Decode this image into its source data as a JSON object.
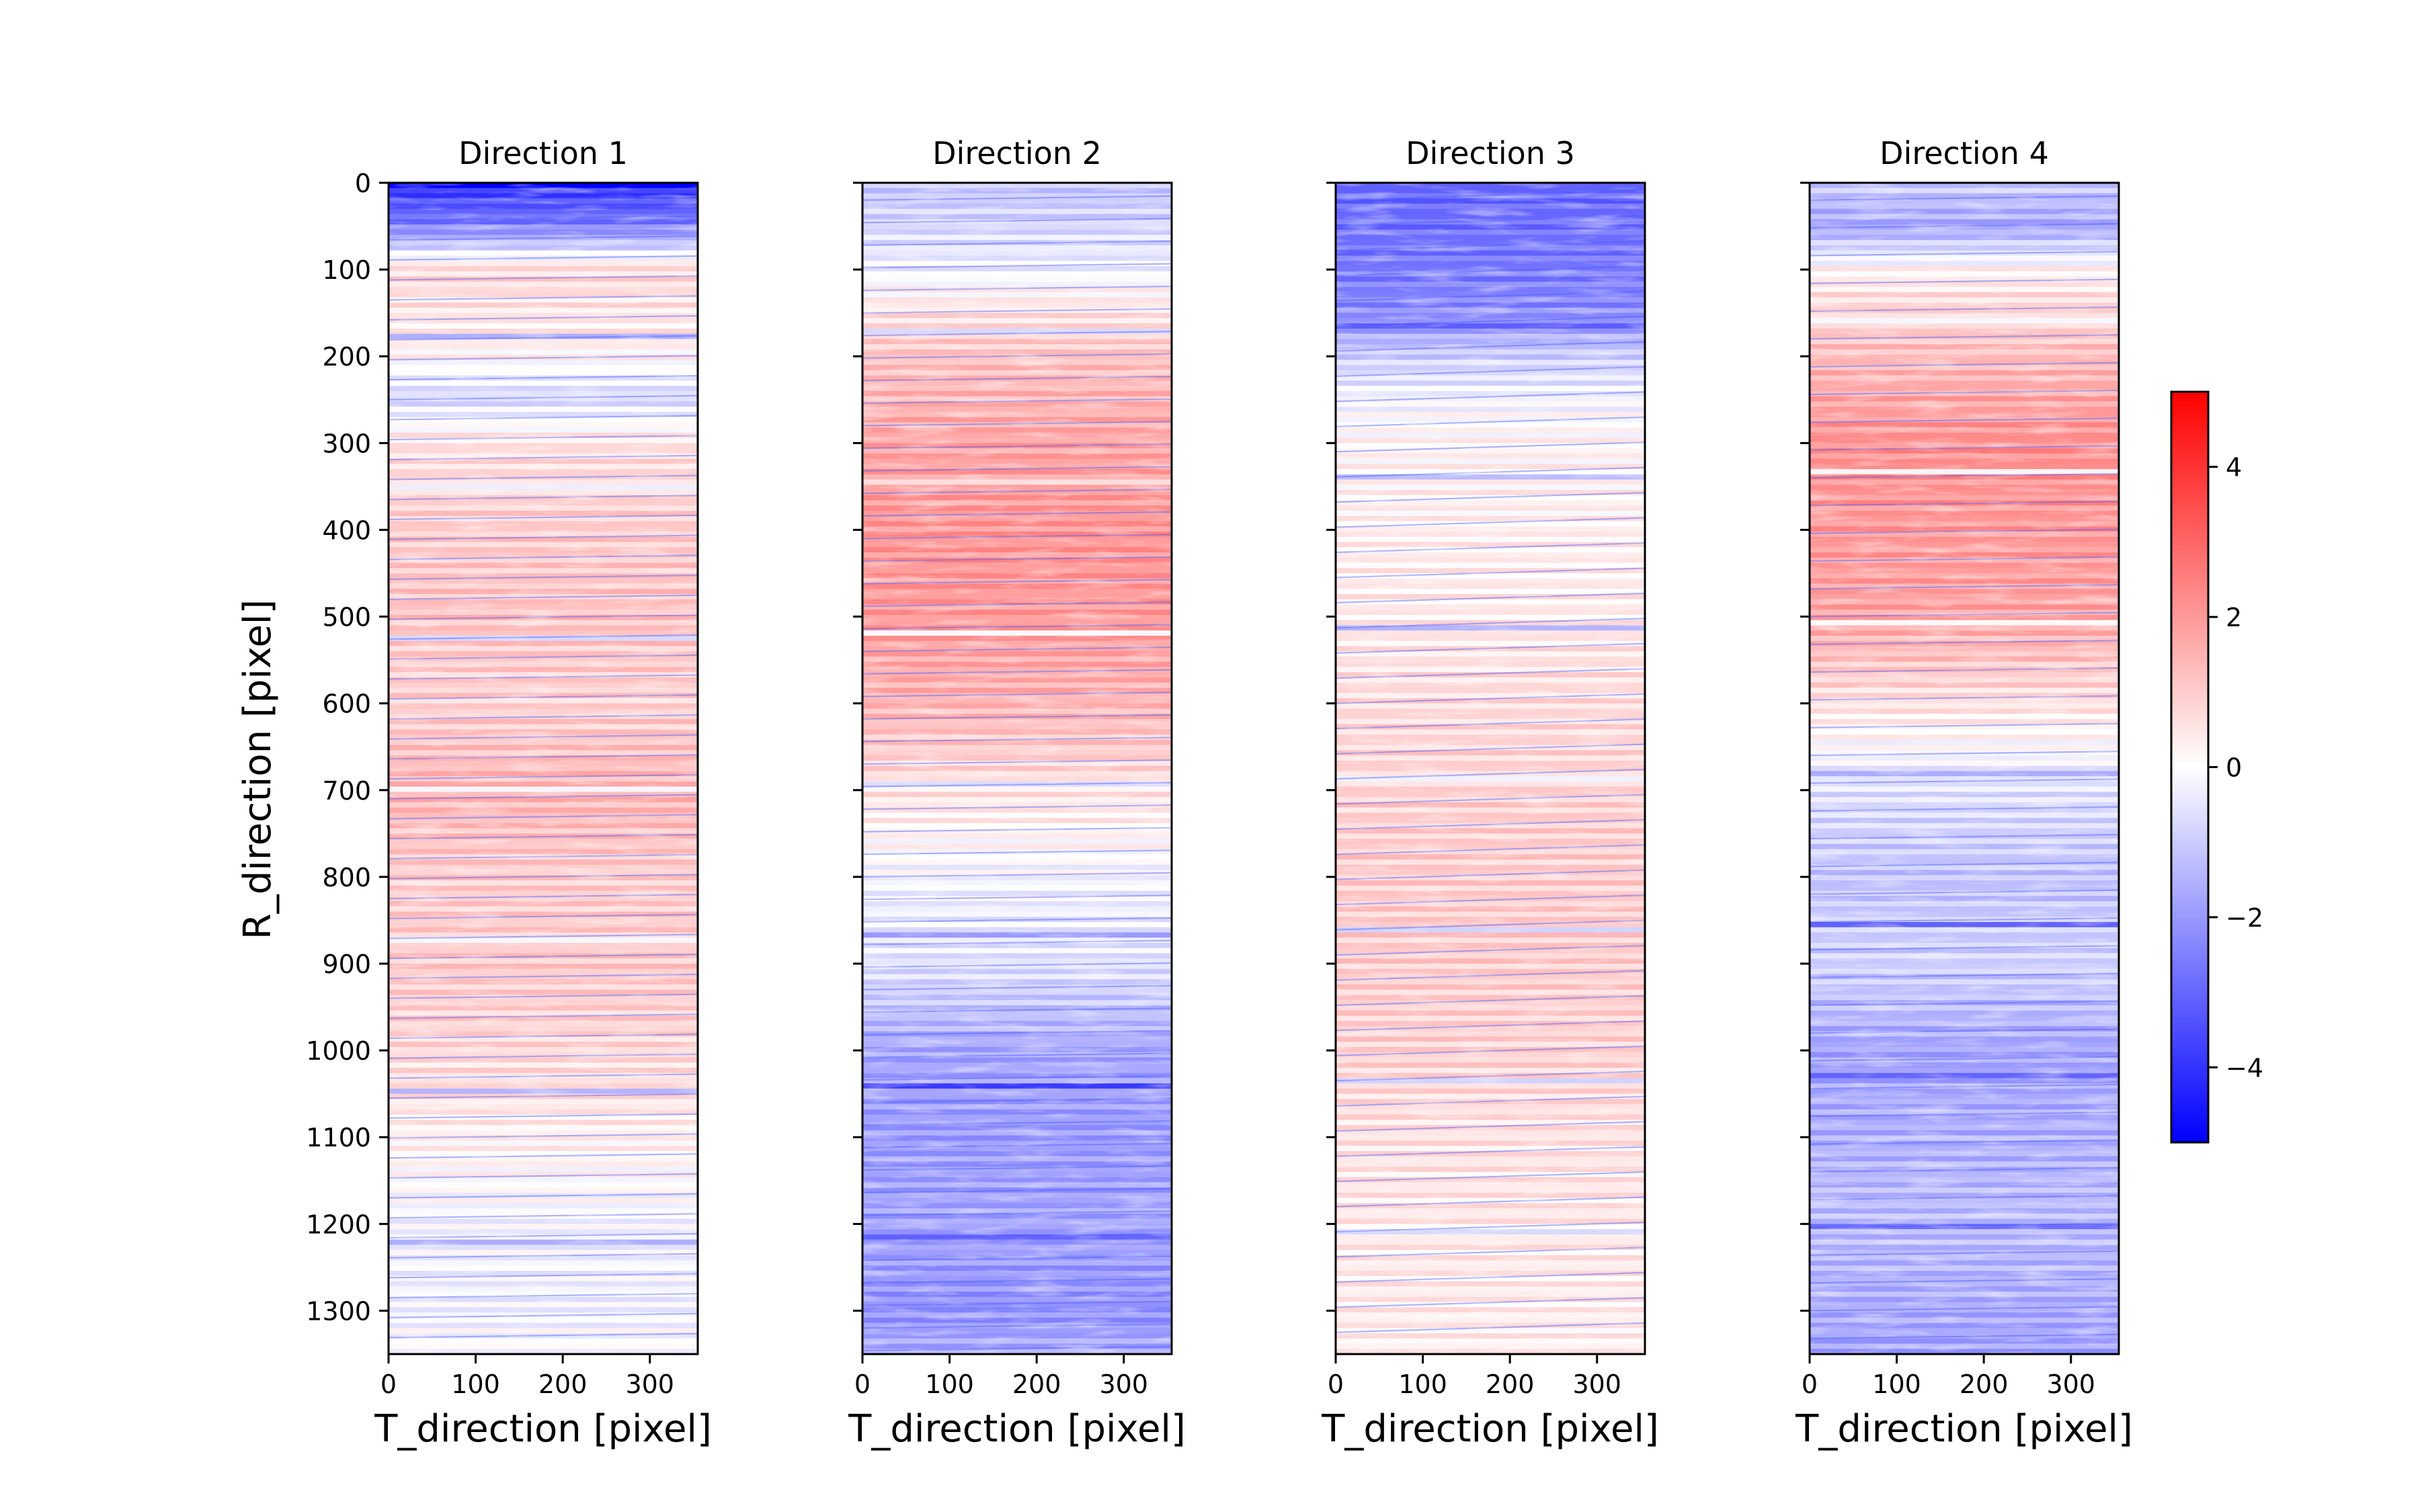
{
  "chart_data": {
    "type": "heatmap",
    "ylabel": "R_direction [pixel]",
    "y_ticks": [
      0,
      100,
      200,
      300,
      400,
      500,
      600,
      700,
      800,
      900,
      1000,
      1100,
      1200,
      1300
    ],
    "x_ticks": [
      0,
      100,
      200,
      300
    ],
    "xlim": [
      0,
      355
    ],
    "ylim": [
      1350,
      0
    ],
    "colorbar": {
      "range": [
        -5,
        5
      ],
      "ticks": [
        4,
        2,
        0,
        -2,
        -4
      ],
      "tick_labels": [
        "4",
        "2",
        "0",
        "−2",
        "−4"
      ],
      "colormap": "bwr",
      "low_color": "#0000ff",
      "mid_color": "#ffffff",
      "high_color": "#ff0000"
    },
    "panels": [
      {
        "title": "Direction 1",
        "xlabel": "T_direction [pixel]",
        "profile": [
          [
            0,
            -4.2
          ],
          [
            50,
            -2.5
          ],
          [
            100,
            0.8
          ],
          [
            150,
            0.5
          ],
          [
            200,
            0.2
          ],
          [
            250,
            -0.8
          ],
          [
            300,
            0.6
          ],
          [
            400,
            1.0
          ],
          [
            500,
            1.2
          ],
          [
            600,
            0.9
          ],
          [
            700,
            1.5
          ],
          [
            800,
            1.0
          ],
          [
            900,
            1.1
          ],
          [
            1000,
            0.8
          ],
          [
            1100,
            0.3
          ],
          [
            1200,
            -0.2
          ],
          [
            1300,
            -0.3
          ],
          [
            1350,
            0.0
          ]
        ]
      },
      {
        "title": "Direction 2",
        "xlabel": "T_direction [pixel]",
        "profile": [
          [
            0,
            -1.2
          ],
          [
            50,
            -0.8
          ],
          [
            100,
            -0.3
          ],
          [
            150,
            0.6
          ],
          [
            200,
            1.2
          ],
          [
            300,
            1.8
          ],
          [
            400,
            2.1
          ],
          [
            500,
            2.0
          ],
          [
            600,
            1.5
          ],
          [
            700,
            0.6
          ],
          [
            800,
            -0.2
          ],
          [
            900,
            -0.6
          ],
          [
            1000,
            -1.8
          ],
          [
            1100,
            -2.0
          ],
          [
            1200,
            -1.8
          ],
          [
            1300,
            -2.2
          ],
          [
            1350,
            -1.6
          ]
        ]
      },
      {
        "title": "Direction 3",
        "xlabel": "T_direction [pixel]",
        "profile": [
          [
            0,
            -3.0
          ],
          [
            50,
            -2.8
          ],
          [
            100,
            -2.6
          ],
          [
            150,
            -2.3
          ],
          [
            200,
            -1.0
          ],
          [
            250,
            -0.2
          ],
          [
            300,
            0.2
          ],
          [
            400,
            0.3
          ],
          [
            500,
            0.4
          ],
          [
            600,
            0.7
          ],
          [
            700,
            0.9
          ],
          [
            800,
            1.0
          ],
          [
            900,
            1.0
          ],
          [
            1000,
            0.9
          ],
          [
            1100,
            0.6
          ],
          [
            1200,
            0.5
          ],
          [
            1300,
            0.4
          ],
          [
            1350,
            0.3
          ]
        ]
      },
      {
        "title": "Direction 4",
        "xlabel": "T_direction [pixel]",
        "profile": [
          [
            0,
            -1.0
          ],
          [
            50,
            -1.8
          ],
          [
            100,
            0.2
          ],
          [
            150,
            0.9
          ],
          [
            200,
            1.3
          ],
          [
            300,
            2.2
          ],
          [
            400,
            2.0
          ],
          [
            500,
            1.8
          ],
          [
            600,
            0.6
          ],
          [
            700,
            -0.6
          ],
          [
            800,
            -1.2
          ],
          [
            900,
            -0.9
          ],
          [
            1000,
            -1.8
          ],
          [
            1100,
            -1.6
          ],
          [
            1200,
            -1.3
          ],
          [
            1300,
            -1.7
          ],
          [
            1350,
            -1.9
          ]
        ]
      }
    ]
  }
}
